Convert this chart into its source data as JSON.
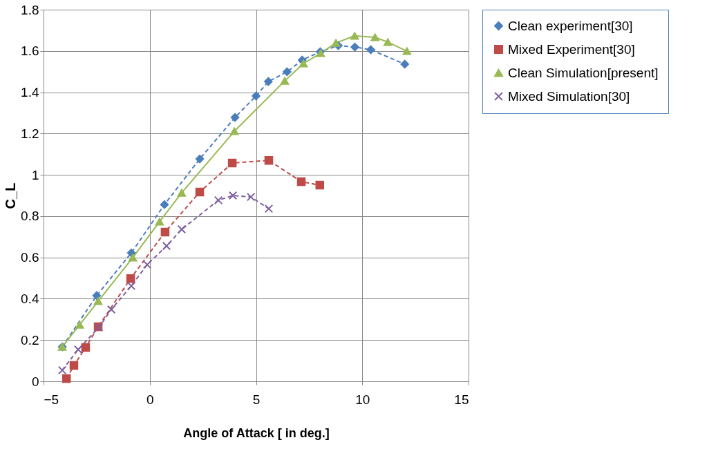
{
  "chart_data": {
    "type": "line",
    "xlabel": "Angle of Attack [ in deg.]",
    "ylabel": "C_L",
    "xlim": [
      -5,
      15
    ],
    "xticks": [
      -5,
      0,
      5,
      10,
      15
    ],
    "ylim": [
      0,
      1.8
    ],
    "yticks": [
      0,
      0.2,
      0.4,
      0.6,
      0.8,
      1,
      1.2,
      1.4,
      1.6,
      1.8
    ],
    "grid": true,
    "legend": "right",
    "series": [
      {
        "name": "Clean experiment[30]",
        "color": "#4a7ebb",
        "marker": "diamond",
        "line_style": "dashed",
        "x": [
          -4.12,
          -2.5,
          -0.87,
          0.69,
          2.35,
          4.01,
          5.0,
          5.58,
          6.46,
          7.17,
          8.02,
          8.87,
          9.65,
          10.4,
          12.0
        ],
        "values": [
          0.167,
          0.415,
          0.622,
          0.856,
          1.077,
          1.278,
          1.382,
          1.452,
          1.499,
          1.556,
          1.596,
          1.626,
          1.619,
          1.606,
          1.536
        ]
      },
      {
        "name": "Mixed Experiment[30]",
        "color": "#be4b48",
        "marker": "square",
        "line_style": "dashed",
        "x": [
          -3.92,
          -3.57,
          -3.02,
          -2.43,
          -0.9,
          0.72,
          2.35,
          3.88,
          5.6,
          7.13,
          8.0
        ],
        "values": [
          0.013,
          0.077,
          0.164,
          0.264,
          0.498,
          0.723,
          0.917,
          1.057,
          1.07,
          0.967,
          0.95
        ]
      },
      {
        "name": "Clean Simulation[present]",
        "color": "#98b954",
        "marker": "triangle",
        "line_style": "solid",
        "x": [
          -4.12,
          -3.3,
          -2.43,
          -0.8,
          0.46,
          1.5,
          3.98,
          6.35,
          7.23,
          8.04,
          8.76,
          9.64,
          10.6,
          11.2,
          12.1
        ],
        "values": [
          0.167,
          0.274,
          0.388,
          0.599,
          0.773,
          0.913,
          1.211,
          1.455,
          1.539,
          1.589,
          1.639,
          1.673,
          1.666,
          1.643,
          1.599
        ]
      },
      {
        "name": "Mixed Simulation[30]",
        "color": "#7d60a0",
        "marker": "cross",
        "line_style": "dashed",
        "x": [
          -4.12,
          -3.37,
          -2.4,
          -1.81,
          -0.87,
          -0.12,
          0.79,
          1.5,
          3.23,
          3.91,
          4.76,
          5.6
        ],
        "values": [
          0.054,
          0.154,
          0.261,
          0.348,
          0.462,
          0.565,
          0.656,
          0.736,
          0.877,
          0.9,
          0.893,
          0.836
        ]
      }
    ]
  }
}
